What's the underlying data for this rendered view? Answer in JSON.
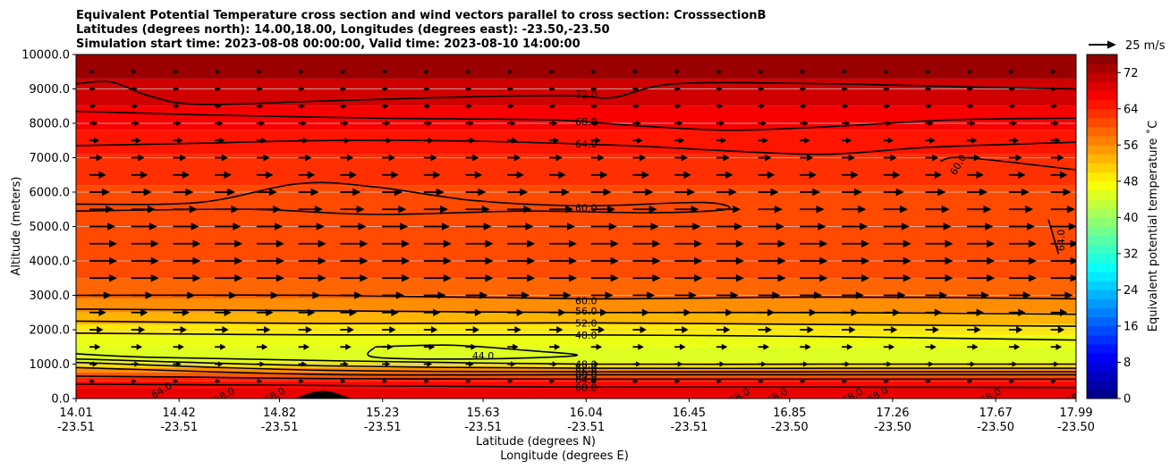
{
  "chart_data": {
    "type": "heatmap",
    "title_lines": [
      "Equivalent Potential Temperature cross section and wind vectors parallel to cross section: CrosssectionB",
      "Latitudes (degrees north): 14.00,18.00, Longitudes (degrees east): -23.50,-23.50",
      "Simulation start time: 2023-08-08 00:00:00, Valid time: 2023-08-10 14:00:00"
    ],
    "ylabel": "Altitude (meters)",
    "xlabel_lat": "Latitude (degrees N)",
    "xlabel_lon": "Longitude (degrees E)",
    "ylim": [
      0,
      10000
    ],
    "xlim": [
      14.01,
      17.99
    ],
    "y_ticks": [
      {
        "value": 0,
        "label": "0.0"
      },
      {
        "value": 1000,
        "label": "1000.0"
      },
      {
        "value": 2000,
        "label": "2000.0"
      },
      {
        "value": 3000,
        "label": "3000.0"
      },
      {
        "value": 4000,
        "label": "4000.0"
      },
      {
        "value": 5000,
        "label": "5000.0"
      },
      {
        "value": 6000,
        "label": "6000.0"
      },
      {
        "value": 7000,
        "label": "7000.0"
      },
      {
        "value": 8000,
        "label": "8000.0"
      },
      {
        "value": 9000,
        "label": "9000.0"
      },
      {
        "value": 10000,
        "label": "10000.0"
      }
    ],
    "x_ticks": [
      {
        "lat": 14.01,
        "lat_label": "14.01",
        "lon_label": "-23.51"
      },
      {
        "lat": 14.42,
        "lat_label": "14.42",
        "lon_label": "-23.51"
      },
      {
        "lat": 14.82,
        "lat_label": "14.82",
        "lon_label": "-23.51"
      },
      {
        "lat": 15.23,
        "lat_label": "15.23",
        "lon_label": "-23.51"
      },
      {
        "lat": 15.63,
        "lat_label": "15.63",
        "lon_label": "-23.51"
      },
      {
        "lat": 16.04,
        "lat_label": "16.04",
        "lon_label": "-23.51"
      },
      {
        "lat": 16.45,
        "lat_label": "16.45",
        "lon_label": "-23.51"
      },
      {
        "lat": 16.85,
        "lat_label": "16.85",
        "lon_label": "-23.50"
      },
      {
        "lat": 17.26,
        "lat_label": "17.26",
        "lon_label": "-23.50"
      },
      {
        "lat": 17.67,
        "lat_label": "17.67",
        "lon_label": "-23.50"
      },
      {
        "lat": 17.99,
        "lat_label": "17.99",
        "lon_label": "-23.50"
      }
    ],
    "layers": [
      {
        "from": 0,
        "to": 300,
        "value": 68
      },
      {
        "from": 300,
        "to": 500,
        "value": 66
      },
      {
        "from": 500,
        "to": 620,
        "value": 64
      },
      {
        "from": 620,
        "to": 760,
        "value": 60
      },
      {
        "from": 760,
        "to": 900,
        "value": 56
      },
      {
        "from": 900,
        "to": 1050,
        "value": 50
      },
      {
        "from": 1050,
        "to": 1500,
        "value": 45
      },
      {
        "from": 1500,
        "to": 1850,
        "value": 46
      },
      {
        "from": 1850,
        "to": 2150,
        "value": 49
      },
      {
        "from": 2150,
        "to": 2500,
        "value": 53
      },
      {
        "from": 2500,
        "to": 2900,
        "value": 56
      },
      {
        "from": 2900,
        "to": 3500,
        "value": 59
      },
      {
        "from": 3500,
        "to": 6200,
        "value": 61
      },
      {
        "from": 6200,
        "to": 7100,
        "value": 63
      },
      {
        "from": 7100,
        "to": 7800,
        "value": 65
      },
      {
        "from": 7800,
        "to": 8500,
        "value": 67
      },
      {
        "from": 8500,
        "to": 9300,
        "value": 70
      },
      {
        "from": 9300,
        "to": 10000,
        "value": 74
      }
    ],
    "contours": [
      {
        "level": "72.0",
        "label_at": [
          16.04,
          8850
        ],
        "points": [
          [
            14.01,
            9150
          ],
          [
            14.15,
            9200
          ],
          [
            14.3,
            8800
          ],
          [
            14.5,
            8550
          ],
          [
            15.0,
            8650
          ],
          [
            15.63,
            8780
          ],
          [
            16.0,
            8800
          ],
          [
            16.15,
            8750
          ],
          [
            16.4,
            9150
          ],
          [
            17.0,
            9150
          ],
          [
            17.6,
            9050
          ],
          [
            17.99,
            9000
          ]
        ]
      },
      {
        "level": "68.0",
        "label_at": [
          16.04,
          8050
        ],
        "points": [
          [
            14.01,
            8350
          ],
          [
            14.5,
            8250
          ],
          [
            15.2,
            8150
          ],
          [
            15.9,
            8100
          ],
          [
            16.2,
            7950
          ],
          [
            16.6,
            7800
          ],
          [
            17.0,
            7900
          ],
          [
            17.5,
            8100
          ],
          [
            17.99,
            8150
          ]
        ]
      },
      {
        "level": "64.0",
        "label_at": [
          16.04,
          7400
        ],
        "points": [
          [
            14.01,
            7350
          ],
          [
            14.5,
            7420
          ],
          [
            15.0,
            7500
          ],
          [
            15.6,
            7480
          ],
          [
            16.2,
            7350
          ],
          [
            16.6,
            7200
          ],
          [
            17.0,
            7100
          ],
          [
            17.4,
            7300
          ],
          [
            17.99,
            7450
          ]
        ]
      },
      {
        "level": "60.0",
        "label_at": [
          16.04,
          5550
        ],
        "points": [
          [
            14.01,
            5650
          ],
          [
            14.5,
            5700
          ],
          [
            14.9,
            6250
          ],
          [
            15.2,
            6150
          ],
          [
            15.6,
            5750
          ],
          [
            16.04,
            5600
          ],
          [
            16.5,
            5700
          ],
          [
            16.6,
            5500
          ],
          [
            16.3,
            5400
          ],
          [
            15.8,
            5450
          ],
          [
            15.2,
            5350
          ],
          [
            14.7,
            5500
          ],
          [
            14.01,
            5450
          ]
        ]
      },
      {
        "level": "60.0",
        "label_at": [
          16.04,
          2850
        ],
        "points": [
          [
            14.01,
            3000
          ],
          [
            15.0,
            3000
          ],
          [
            16.04,
            2900
          ],
          [
            17.0,
            2950
          ],
          [
            17.99,
            2900
          ]
        ]
      },
      {
        "level": "56.0",
        "label_at": [
          16.04,
          2550
        ],
        "points": [
          [
            14.01,
            2600
          ],
          [
            15.0,
            2550
          ],
          [
            16.04,
            2500
          ],
          [
            17.0,
            2500
          ],
          [
            17.99,
            2450
          ]
        ]
      },
      {
        "level": "52.0",
        "label_at": [
          16.04,
          2200
        ],
        "points": [
          [
            14.01,
            2250
          ],
          [
            15.0,
            2180
          ],
          [
            16.04,
            2200
          ],
          [
            17.0,
            2150
          ],
          [
            17.99,
            2100
          ]
        ]
      },
      {
        "level": "48.0",
        "label_at": [
          16.04,
          1850
        ],
        "points": [
          [
            14.01,
            1900
          ],
          [
            15.0,
            1850
          ],
          [
            16.04,
            1850
          ],
          [
            17.0,
            1800
          ],
          [
            17.99,
            1700
          ]
        ]
      },
      {
        "level": "44.0",
        "label_at": [
          15.63,
          1250
        ],
        "points": [
          [
            15.2,
            1500
          ],
          [
            15.5,
            1550
          ],
          [
            15.8,
            1400
          ],
          [
            16.0,
            1250
          ],
          [
            15.6,
            1150
          ],
          [
            15.2,
            1200
          ],
          [
            15.2,
            1500
          ]
        ]
      },
      {
        "level": "48.0",
        "label_at": [
          16.04,
          1000
        ],
        "points": [
          [
            14.01,
            1300
          ],
          [
            14.3,
            1200
          ],
          [
            15.0,
            1100
          ],
          [
            16.04,
            1000
          ],
          [
            17.0,
            1000
          ],
          [
            17.99,
            1000
          ]
        ]
      },
      {
        "level": "52.0",
        "label_at": [
          16.04,
          900
        ],
        "points": [
          [
            14.01,
            1150
          ],
          [
            15.0,
            950
          ],
          [
            16.04,
            880
          ],
          [
            17.0,
            880
          ],
          [
            17.99,
            880
          ]
        ]
      },
      {
        "level": "56.0",
        "label_at": [
          16.04,
          780
        ],
        "points": [
          [
            14.01,
            1050
          ],
          [
            15.0,
            820
          ],
          [
            16.04,
            780
          ],
          [
            17.0,
            780
          ],
          [
            17.99,
            780
          ]
        ]
      },
      {
        "level": "60.0",
        "label_at": [
          16.04,
          680
        ],
        "points": [
          [
            14.01,
            900
          ],
          [
            15.0,
            700
          ],
          [
            16.04,
            690
          ],
          [
            17.0,
            690
          ],
          [
            17.99,
            690
          ]
        ]
      },
      {
        "level": "64.0",
        "label_at": [
          16.04,
          550
        ],
        "points": [
          [
            14.01,
            650
          ],
          [
            14.5,
            620
          ],
          [
            15.0,
            580
          ],
          [
            16.04,
            560
          ],
          [
            17.0,
            560
          ],
          [
            17.99,
            560
          ]
        ]
      },
      {
        "level": "68.0",
        "label_at": [
          16.04,
          330
        ],
        "points": [
          [
            14.01,
            420
          ],
          [
            15.0,
            380
          ],
          [
            16.04,
            330
          ],
          [
            17.0,
            330
          ],
          [
            17.99,
            320
          ]
        ]
      },
      {
        "level": "60.0",
        "label_at": [
          17.52,
          6800
        ],
        "points": [
          [
            17.45,
            6900
          ],
          [
            17.55,
            7000
          ],
          [
            17.99,
            6650
          ]
        ]
      },
      {
        "level": "64.0",
        "label_at": [
          17.93,
          4600
        ],
        "points": [
          [
            17.88,
            5200
          ],
          [
            17.92,
            4200
          ]
        ]
      }
    ],
    "colorbar": {
      "label": "Equivalent potential temperature ˚C",
      "min": 0,
      "max": 76,
      "ticks": [
        0,
        8,
        16,
        24,
        32,
        40,
        48,
        56,
        64,
        72
      ]
    },
    "quiver_key": {
      "label": "25 m/s",
      "speed": 25
    },
    "wind_arrows_min_height": 500,
    "wind_profile": [
      {
        "height": 500,
        "speed": 5
      },
      {
        "height": 1500,
        "speed": 10
      },
      {
        "height": 2500,
        "speed": 15
      },
      {
        "height": 3500,
        "speed": 25
      },
      {
        "height": 4500,
        "speed": 25
      },
      {
        "height": 5500,
        "speed": 22
      },
      {
        "height": 6500,
        "speed": 15
      },
      {
        "height": 7500,
        "speed": 9
      },
      {
        "height": 8500,
        "speed": 6
      },
      {
        "height": 9500,
        "speed": 5
      }
    ],
    "bottom_labels": [
      {
        "text": "64.0",
        "lat": 14.35,
        "alt": 250
      },
      {
        "text": "68.0",
        "lat": 14.6,
        "alt": 100
      },
      {
        "text": "68.0",
        "lat": 14.8,
        "alt": 100
      },
      {
        "text": "68.0",
        "lat": 16.65,
        "alt": 80
      },
      {
        "text": "68.0",
        "lat": 16.8,
        "alt": 80
      },
      {
        "text": "68.0",
        "lat": 17.1,
        "alt": 80
      },
      {
        "text": "68.0",
        "lat": 17.2,
        "alt": 120
      },
      {
        "text": "68.0",
        "lat": 17.65,
        "alt": 80
      },
      {
        "text": "68.0",
        "lat": 17.99,
        "alt": 60
      }
    ]
  }
}
